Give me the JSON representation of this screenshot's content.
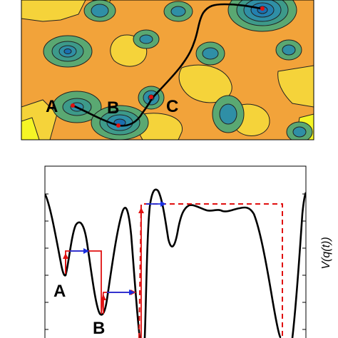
{
  "top_panel": {
    "labels": [
      "A",
      "B",
      "C"
    ],
    "colors": {
      "background": "#f2a33a",
      "plateau": "#f5d33a",
      "ridge_yellow": "#f5f526",
      "well_green": "#5aa872",
      "well_teal": "#2f8fa6",
      "well_core": "#1a6fb0",
      "contour": "#222222",
      "path": "#000000",
      "marker": "#e01010"
    }
  },
  "bottom_panel": {
    "ylabel": "V(q(t))",
    "labels": [
      "A",
      "B"
    ],
    "colors": {
      "curve": "#000000",
      "dashed_path": "#e01010",
      "step_path": "#e01010",
      "arrow": "#1a2fe0"
    }
  }
}
